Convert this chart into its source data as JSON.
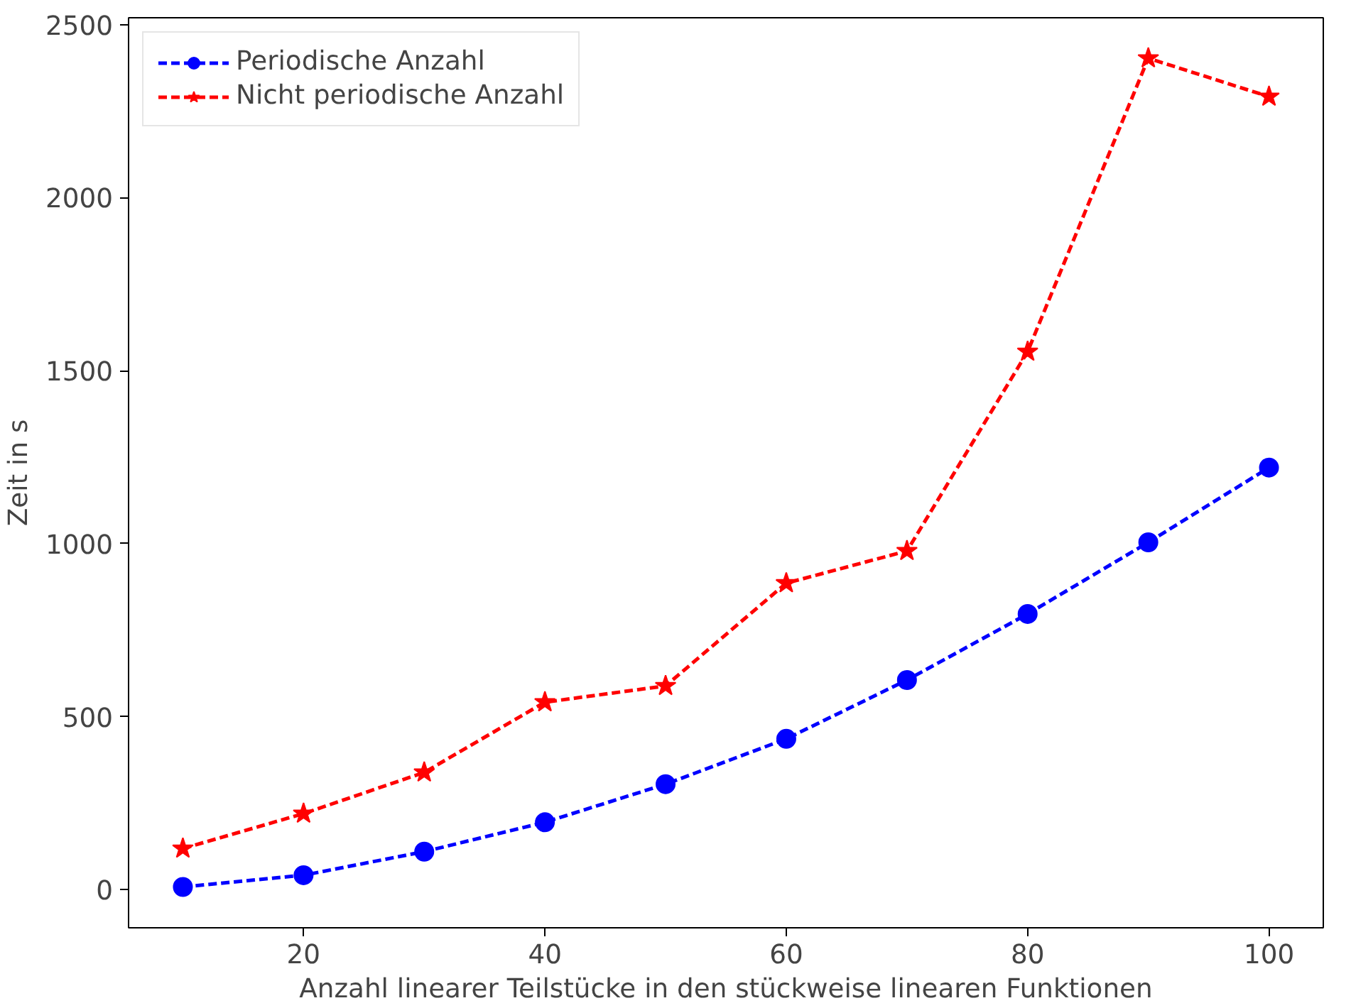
{
  "chart_data": {
    "type": "line",
    "xlabel": "Anzahl linearer Teilstücke in den stückweise linearen Funktionen",
    "ylabel": "Zeit in s",
    "x": [
      10,
      20,
      30,
      40,
      50,
      60,
      70,
      80,
      90,
      100
    ],
    "series": [
      {
        "name": "Periodische Anzahl",
        "color": "#0000ff",
        "marker": "circle",
        "line_style": "dashed",
        "values": [
          8,
          42,
          110,
          195,
          305,
          436,
          606,
          797,
          1004,
          1220
        ]
      },
      {
        "name": "Nicht periodische Anzahl",
        "color": "#ff0000",
        "marker": "star",
        "line_style": "dashed",
        "values": [
          119,
          220,
          339,
          542,
          589,
          886,
          979,
          1555,
          2403,
          2292
        ]
      }
    ],
    "xlim": [
      5.5,
      104.5
    ],
    "xticks": [
      20,
      40,
      60,
      80,
      100
    ],
    "ylim": [
      -110,
      2520
    ],
    "yticks": [
      0,
      500,
      1000,
      1500,
      2000,
      2500
    ],
    "grid": false,
    "legend": "top left"
  }
}
